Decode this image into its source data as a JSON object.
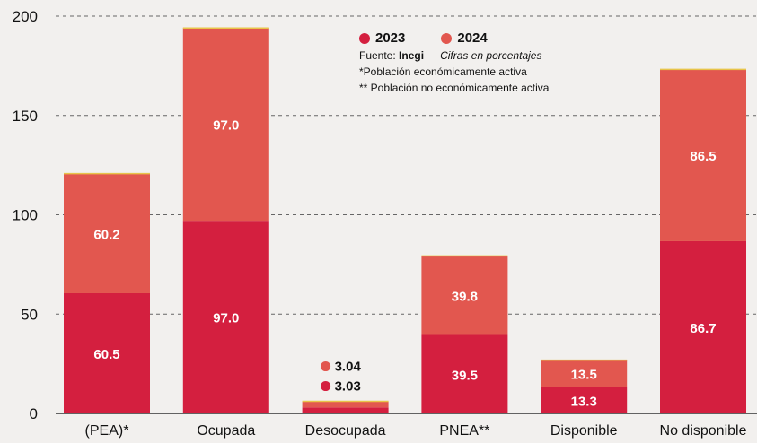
{
  "chart_data": {
    "type": "bar",
    "stacked": true,
    "categories": [
      "(PEA)*",
      "Ocupada",
      "Desocupada",
      "PNEA**",
      "Disponible",
      "No disponible"
    ],
    "series": [
      {
        "name": "2023",
        "values": [
          60.5,
          97.0,
          3.03,
          39.5,
          13.3,
          86.7
        ],
        "color": "#d41f3f",
        "labels": [
          "60.5",
          "97.0",
          "3.03",
          "39.5",
          "13.3",
          "86.7"
        ]
      },
      {
        "name": "2024",
        "values": [
          60.2,
          97.0,
          3.04,
          39.8,
          13.5,
          86.5
        ],
        "color": "#e2574f",
        "labels": [
          "60.2",
          "97.0",
          "3.04",
          "39.8",
          "13.5",
          "86.5"
        ]
      }
    ],
    "y_ticks": [
      "0",
      "50",
      "100",
      "150",
      "200"
    ],
    "ylim": [
      0,
      200
    ],
    "grid": true,
    "legend_position": "top-center"
  },
  "legend": {
    "series_2023": "2023",
    "series_2024": "2024",
    "source_prefix": "Fuente:",
    "source_name": "Inegi",
    "units_note": "Cifras en porcentajes",
    "note_pea": "*Población económicamente activa",
    "note_pnea": "** Población no económicamente activa"
  }
}
